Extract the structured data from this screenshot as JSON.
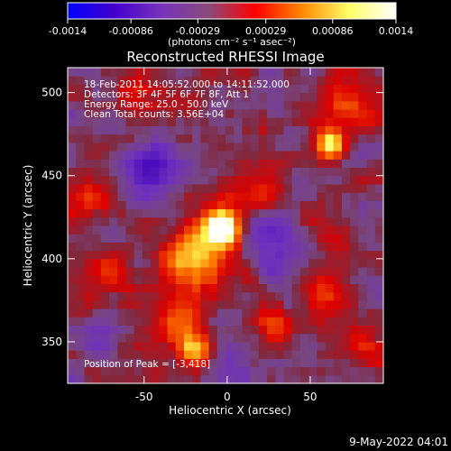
{
  "colorbar": {
    "ticks": [
      "-0.0014",
      "-0.00086",
      "-0.00029",
      "0.00029",
      "0.00086",
      "0.0014"
    ],
    "tick_values": [
      -0.0014,
      -0.00086,
      -0.00029,
      0.00029,
      0.00086,
      0.0014
    ],
    "range": [
      -0.0014,
      0.0014
    ],
    "units": "(photons cm⁻² s⁻¹ asec⁻²)",
    "colors": [
      "#0000ff",
      "#4400cc",
      "#7733bb",
      "#8a4a7a",
      "#ff0000",
      "#ff8800",
      "#ffff66",
      "#ffffff"
    ]
  },
  "footer": {
    "date": "9-May-2022 04:01"
  },
  "chart_data": {
    "type": "heatmap",
    "title": "Reconstructed RHESSI Image",
    "xlabel": "Heliocentric X (arcsec)",
    "ylabel": "Heliocentric Y (arcsec)",
    "xlim": [
      -96,
      94
    ],
    "ylim": [
      325,
      515
    ],
    "xticks": [
      -50,
      0,
      50
    ],
    "yticks": [
      350,
      400,
      450,
      500
    ],
    "xtick_labels": [
      "-50",
      "0",
      "50"
    ],
    "ytick_labels": [
      "350",
      "400",
      "450",
      "500"
    ],
    "grid": false,
    "info_lines": [
      "18-Feb-2011 14:05:52.000 to 14:11:52.000",
      "Detectors: 3F 4F 5F 6F 7F 8F, Att 1",
      "Energy Range: 25.0 - 50.0 keV",
      "Clean      Total counts: 3.56E+04"
    ],
    "peak_label": "Position of Peak = [-3,418]",
    "peak": [
      -3,
      418
    ],
    "peak_value": 0.0014,
    "sources": [
      {
        "x": -3,
        "y": 418,
        "sigma": 7,
        "amp": 1.0
      },
      {
        "x": -12,
        "y": 408,
        "sigma": 14,
        "amp": 0.5
      },
      {
        "x": 62,
        "y": 470,
        "sigma": 6,
        "amp": 0.8
      },
      {
        "x": 72,
        "y": 490,
        "sigma": 10,
        "amp": 0.45
      },
      {
        "x": -25,
        "y": 395,
        "sigma": 12,
        "amp": 0.35
      },
      {
        "x": -30,
        "y": 360,
        "sigma": 12,
        "amp": 0.4
      },
      {
        "x": -20,
        "y": 345,
        "sigma": 7,
        "amp": 0.45
      },
      {
        "x": 20,
        "y": 445,
        "sigma": 12,
        "amp": 0.35
      },
      {
        "x": 50,
        "y": 420,
        "sigma": 12,
        "amp": 0.25
      },
      {
        "x": 60,
        "y": 380,
        "sigma": 10,
        "amp": 0.35
      },
      {
        "x": -80,
        "y": 440,
        "sigma": 10,
        "amp": 0.3
      },
      {
        "x": -70,
        "y": 390,
        "sigma": 10,
        "amp": 0.3
      },
      {
        "x": 80,
        "y": 350,
        "sigma": 10,
        "amp": 0.3
      },
      {
        "x": -55,
        "y": 500,
        "sigma": 9,
        "amp": 0.3
      },
      {
        "x": 30,
        "y": 360,
        "sigma": 9,
        "amp": 0.3
      }
    ],
    "negative_sources": [
      {
        "x": -45,
        "y": 455,
        "sigma": 12,
        "amp": 0.55
      },
      {
        "x": 30,
        "y": 410,
        "sigma": 12,
        "amp": 0.45
      },
      {
        "x": 5,
        "y": 335,
        "sigma": 10,
        "amp": 0.3
      },
      {
        "x": -80,
        "y": 350,
        "sigma": 10,
        "amp": 0.25
      }
    ]
  }
}
